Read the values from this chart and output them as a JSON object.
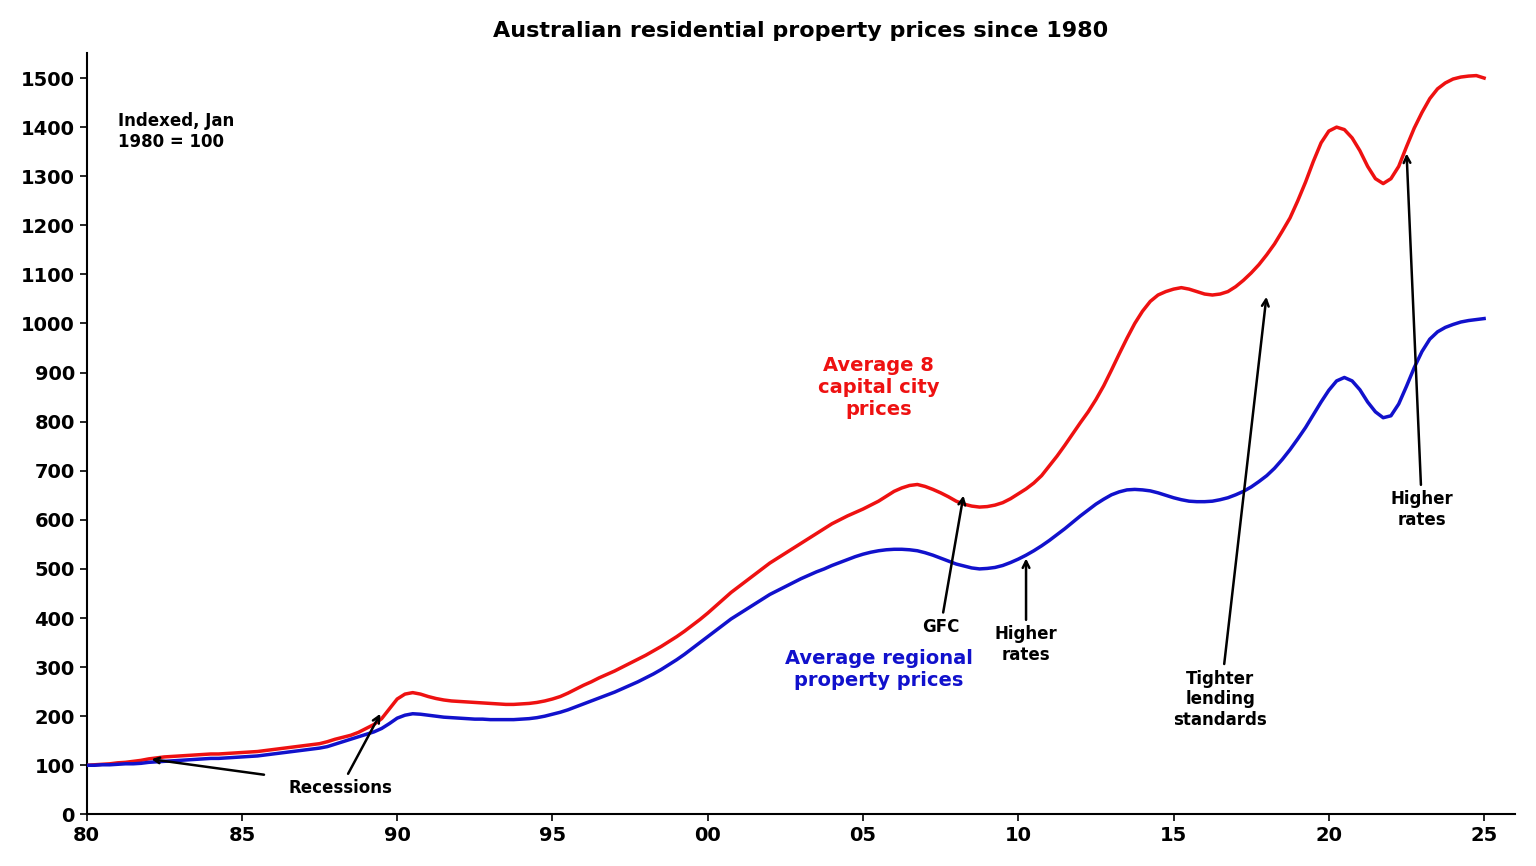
{
  "title": "Australian residential property prices since 1980",
  "title_fontsize": 16,
  "index_label": "Indexed, Jan\n1980 = 100",
  "xlim": [
    1980,
    2026
  ],
  "ylim": [
    0,
    1550
  ],
  "xtick_years": [
    1980,
    1985,
    1990,
    1995,
    2000,
    2005,
    2010,
    2015,
    2020,
    2025
  ],
  "xticklabels": [
    "80",
    "85",
    "90",
    "95",
    "00",
    "05",
    "10",
    "15",
    "20",
    "25"
  ],
  "yticks": [
    0,
    100,
    200,
    300,
    400,
    500,
    600,
    700,
    800,
    900,
    1000,
    1100,
    1200,
    1300,
    1400,
    1500
  ],
  "capital_city_color": "#ee1111",
  "regional_color": "#1111cc",
  "capital_city_label": "Average 8\ncapital city\nprices",
  "regional_label": "Average regional\nproperty prices",
  "years": [
    1980.0,
    1980.25,
    1980.5,
    1980.75,
    1981.0,
    1981.25,
    1981.5,
    1981.75,
    1982.0,
    1982.25,
    1982.5,
    1982.75,
    1983.0,
    1983.25,
    1983.5,
    1983.75,
    1984.0,
    1984.25,
    1984.5,
    1984.75,
    1985.0,
    1985.25,
    1985.5,
    1985.75,
    1986.0,
    1986.25,
    1986.5,
    1986.75,
    1987.0,
    1987.25,
    1987.5,
    1987.75,
    1988.0,
    1988.25,
    1988.5,
    1988.75,
    1989.0,
    1989.25,
    1989.5,
    1989.75,
    1990.0,
    1990.25,
    1990.5,
    1990.75,
    1991.0,
    1991.25,
    1991.5,
    1991.75,
    1992.0,
    1992.25,
    1992.5,
    1992.75,
    1993.0,
    1993.25,
    1993.5,
    1993.75,
    1994.0,
    1994.25,
    1994.5,
    1994.75,
    1995.0,
    1995.25,
    1995.5,
    1995.75,
    1996.0,
    1996.25,
    1996.5,
    1996.75,
    1997.0,
    1997.25,
    1997.5,
    1997.75,
    1998.0,
    1998.25,
    1998.5,
    1998.75,
    1999.0,
    1999.25,
    1999.5,
    1999.75,
    2000.0,
    2000.25,
    2000.5,
    2000.75,
    2001.0,
    2001.25,
    2001.5,
    2001.75,
    2002.0,
    2002.25,
    2002.5,
    2002.75,
    2003.0,
    2003.25,
    2003.5,
    2003.75,
    2004.0,
    2004.25,
    2004.5,
    2004.75,
    2005.0,
    2005.25,
    2005.5,
    2005.75,
    2006.0,
    2006.25,
    2006.5,
    2006.75,
    2007.0,
    2007.25,
    2007.5,
    2007.75,
    2008.0,
    2008.25,
    2008.5,
    2008.75,
    2009.0,
    2009.25,
    2009.5,
    2009.75,
    2010.0,
    2010.25,
    2010.5,
    2010.75,
    2011.0,
    2011.25,
    2011.5,
    2011.75,
    2012.0,
    2012.25,
    2012.5,
    2012.75,
    2013.0,
    2013.25,
    2013.5,
    2013.75,
    2014.0,
    2014.25,
    2014.5,
    2014.75,
    2015.0,
    2015.25,
    2015.5,
    2015.75,
    2016.0,
    2016.25,
    2016.5,
    2016.75,
    2017.0,
    2017.25,
    2017.5,
    2017.75,
    2018.0,
    2018.25,
    2018.5,
    2018.75,
    2019.0,
    2019.25,
    2019.5,
    2019.75,
    2020.0,
    2020.25,
    2020.5,
    2020.75,
    2021.0,
    2021.25,
    2021.5,
    2021.75,
    2022.0,
    2022.25,
    2022.5,
    2022.75,
    2023.0,
    2023.25,
    2023.5,
    2023.75,
    2024.0,
    2024.25,
    2024.5,
    2024.75,
    2025.0
  ],
  "capital_y": [
    100,
    101,
    102,
    103,
    105,
    106,
    108,
    110,
    113,
    115,
    117,
    118,
    119,
    120,
    121,
    122,
    123,
    123,
    124,
    125,
    126,
    127,
    128,
    130,
    132,
    134,
    136,
    138,
    140,
    142,
    144,
    148,
    153,
    157,
    161,
    167,
    175,
    183,
    195,
    215,
    235,
    245,
    248,
    245,
    240,
    236,
    233,
    231,
    230,
    229,
    228,
    227,
    226,
    225,
    224,
    224,
    225,
    226,
    228,
    231,
    235,
    240,
    247,
    255,
    263,
    270,
    278,
    285,
    292,
    300,
    308,
    316,
    324,
    333,
    342,
    352,
    362,
    373,
    385,
    397,
    410,
    424,
    438,
    452,
    464,
    476,
    488,
    500,
    512,
    522,
    532,
    542,
    552,
    562,
    572,
    582,
    592,
    600,
    608,
    615,
    622,
    630,
    638,
    648,
    658,
    665,
    670,
    672,
    668,
    662,
    655,
    647,
    638,
    632,
    628,
    626,
    627,
    630,
    635,
    643,
    653,
    663,
    675,
    690,
    710,
    730,
    752,
    775,
    798,
    820,
    845,
    873,
    905,
    938,
    970,
    1000,
    1025,
    1045,
    1058,
    1065,
    1070,
    1073,
    1070,
    1065,
    1060,
    1058,
    1060,
    1065,
    1075,
    1088,
    1103,
    1120,
    1140,
    1162,
    1188,
    1215,
    1250,
    1288,
    1330,
    1368,
    1392,
    1400,
    1395,
    1378,
    1352,
    1320,
    1295,
    1285,
    1295,
    1320,
    1360,
    1398,
    1430,
    1458,
    1478,
    1490,
    1498,
    1502,
    1504,
    1505,
    1500
  ],
  "regional_y": [
    100,
    100,
    101,
    101,
    102,
    103,
    103,
    104,
    106,
    107,
    108,
    109,
    110,
    111,
    112,
    113,
    114,
    114,
    115,
    116,
    117,
    118,
    119,
    121,
    123,
    125,
    127,
    129,
    131,
    133,
    135,
    138,
    143,
    148,
    153,
    158,
    163,
    168,
    175,
    185,
    196,
    202,
    205,
    204,
    202,
    200,
    198,
    197,
    196,
    195,
    194,
    194,
    193,
    193,
    193,
    193,
    194,
    195,
    197,
    200,
    204,
    208,
    213,
    219,
    225,
    231,
    237,
    243,
    249,
    256,
    263,
    270,
    278,
    286,
    295,
    305,
    315,
    326,
    338,
    350,
    362,
    374,
    386,
    398,
    408,
    418,
    428,
    438,
    448,
    456,
    464,
    472,
    480,
    487,
    494,
    500,
    507,
    513,
    519,
    525,
    530,
    534,
    537,
    539,
    540,
    540,
    539,
    537,
    533,
    528,
    522,
    516,
    510,
    506,
    502,
    500,
    501,
    503,
    507,
    513,
    520,
    528,
    537,
    547,
    558,
    570,
    582,
    595,
    608,
    620,
    632,
    642,
    651,
    657,
    661,
    662,
    661,
    659,
    655,
    650,
    645,
    641,
    638,
    637,
    637,
    638,
    641,
    645,
    651,
    658,
    667,
    678,
    690,
    705,
    723,
    743,
    765,
    788,
    814,
    840,
    864,
    883,
    890,
    883,
    865,
    840,
    820,
    808,
    812,
    836,
    872,
    910,
    943,
    968,
    983,
    992,
    998,
    1003,
    1006,
    1008,
    1010
  ],
  "background_color": "#ffffff"
}
